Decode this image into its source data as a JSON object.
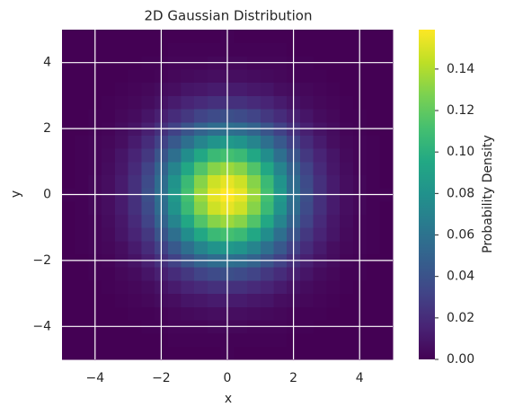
{
  "chart_data": {
    "type": "heatmap",
    "title": "2D Gaussian Distribution",
    "x_label": "x",
    "y_label": "y",
    "xlim": [
      -5,
      5
    ],
    "ylim": [
      -5,
      5
    ],
    "xticks": [
      {
        "value": -4,
        "label": "−4"
      },
      {
        "value": -2,
        "label": "−2"
      },
      0,
      2,
      4
    ],
    "yticks": [
      {
        "value": -4,
        "label": "−4"
      },
      {
        "value": -2,
        "label": "−2"
      },
      0,
      2,
      4
    ],
    "grid": true,
    "colormap": "viridis",
    "x": [
      -4.8,
      -4.4,
      -4.0,
      -3.6,
      -3.2,
      -2.8,
      -2.4,
      -2.0,
      -1.6,
      -1.2,
      -0.8,
      -0.4,
      0,
      0.4,
      0.8,
      1.2,
      1.6,
      2.0,
      2.4,
      2.8,
      3.2,
      3.6,
      4.0,
      4.4,
      4.8
    ],
    "y": [
      -4.8,
      -4.4,
      -4.0,
      -3.6,
      -3.2,
      -2.8,
      -2.4,
      -2.0,
      -1.6,
      -1.2,
      -0.8,
      -0.4,
      0,
      0.4,
      0.8,
      1.2,
      1.6,
      2.0,
      2.4,
      2.8,
      3.2,
      3.6,
      4.0,
      4.4,
      4.8
    ],
    "z": [
      [
        0,
        0,
        0,
        0,
        0,
        0,
        0,
        0,
        0,
        0,
        0,
        0,
        0.001,
        0,
        0,
        0,
        0,
        0,
        0,
        0,
        0,
        0,
        0,
        0,
        0
      ],
      [
        0,
        0,
        0,
        0,
        0,
        0,
        0,
        0,
        0.001,
        0.001,
        0.001,
        0.001,
        0.001,
        0.001,
        0.001,
        0.001,
        0.001,
        0,
        0,
        0,
        0,
        0,
        0,
        0,
        0
      ],
      [
        0,
        0,
        0,
        0,
        0,
        0,
        0.001,
        0.001,
        0.002,
        0.002,
        0.002,
        0.003,
        0.003,
        0.003,
        0.002,
        0.002,
        0.002,
        0.001,
        0.001,
        0,
        0,
        0,
        0,
        0,
        0
      ],
      [
        0,
        0,
        0,
        0,
        0,
        0.001,
        0.001,
        0.002,
        0.003,
        0.004,
        0.005,
        0.006,
        0.006,
        0.006,
        0.005,
        0.004,
        0.003,
        0.002,
        0.001,
        0.001,
        0,
        0,
        0,
        0,
        0
      ],
      [
        0,
        0,
        0,
        0,
        0.001,
        0.002,
        0.003,
        0.005,
        0.006,
        0.009,
        0.01,
        0.012,
        0.012,
        0.012,
        0.01,
        0.009,
        0.006,
        0.005,
        0.003,
        0.002,
        0.001,
        0,
        0,
        0,
        0
      ],
      [
        0,
        0,
        0,
        0.001,
        0.002,
        0.003,
        0.005,
        0.008,
        0.012,
        0.016,
        0.019,
        0.022,
        0.022,
        0.022,
        0.019,
        0.016,
        0.012,
        0.008,
        0.005,
        0.003,
        0.002,
        0.001,
        0,
        0,
        0
      ],
      [
        0,
        0,
        0.001,
        0.001,
        0.003,
        0.005,
        0.009,
        0.014,
        0.02,
        0.026,
        0.032,
        0.036,
        0.038,
        0.036,
        0.032,
        0.026,
        0.02,
        0.014,
        0.009,
        0.005,
        0.003,
        0.001,
        0.001,
        0,
        0
      ],
      [
        0,
        0,
        0.001,
        0.002,
        0.005,
        0.008,
        0.014,
        0.022,
        0.031,
        0.041,
        0.05,
        0.056,
        0.058,
        0.056,
        0.05,
        0.041,
        0.031,
        0.022,
        0.014,
        0.008,
        0.005,
        0.002,
        0.001,
        0,
        0
      ],
      [
        0,
        0.001,
        0.002,
        0.003,
        0.006,
        0.012,
        0.02,
        0.031,
        0.044,
        0.058,
        0.071,
        0.081,
        0.084,
        0.081,
        0.071,
        0.058,
        0.044,
        0.031,
        0.02,
        0.012,
        0.006,
        0.003,
        0.002,
        0.001,
        0
      ],
      [
        0,
        0.001,
        0.002,
        0.004,
        0.009,
        0.016,
        0.026,
        0.041,
        0.058,
        0.077,
        0.095,
        0.107,
        0.111,
        0.107,
        0.095,
        0.077,
        0.058,
        0.041,
        0.026,
        0.016,
        0.009,
        0.004,
        0.002,
        0.001,
        0
      ],
      [
        0,
        0.001,
        0.002,
        0.005,
        0.01,
        0.019,
        0.032,
        0.05,
        0.071,
        0.095,
        0.115,
        0.13,
        0.135,
        0.13,
        0.115,
        0.095,
        0.071,
        0.05,
        0.032,
        0.019,
        0.01,
        0.005,
        0.002,
        0.001,
        0
      ],
      [
        0,
        0.001,
        0.003,
        0.006,
        0.012,
        0.022,
        0.036,
        0.056,
        0.081,
        0.107,
        0.13,
        0.147,
        0.153,
        0.147,
        0.13,
        0.107,
        0.081,
        0.056,
        0.036,
        0.022,
        0.012,
        0.006,
        0.003,
        0.001,
        0
      ],
      [
        0.001,
        0.001,
        0.003,
        0.006,
        0.012,
        0.022,
        0.038,
        0.058,
        0.084,
        0.111,
        0.135,
        0.153,
        0.159,
        0.153,
        0.135,
        0.111,
        0.084,
        0.058,
        0.038,
        0.022,
        0.012,
        0.006,
        0.003,
        0.001,
        0.001
      ],
      [
        0,
        0.001,
        0.003,
        0.006,
        0.012,
        0.022,
        0.036,
        0.056,
        0.081,
        0.107,
        0.13,
        0.147,
        0.153,
        0.147,
        0.13,
        0.107,
        0.081,
        0.056,
        0.036,
        0.022,
        0.012,
        0.006,
        0.003,
        0.001,
        0
      ],
      [
        0,
        0.001,
        0.002,
        0.005,
        0.01,
        0.019,
        0.032,
        0.05,
        0.071,
        0.095,
        0.115,
        0.13,
        0.135,
        0.13,
        0.115,
        0.095,
        0.071,
        0.05,
        0.032,
        0.019,
        0.01,
        0.005,
        0.002,
        0.001,
        0
      ],
      [
        0,
        0.001,
        0.002,
        0.004,
        0.009,
        0.016,
        0.026,
        0.041,
        0.058,
        0.077,
        0.095,
        0.107,
        0.111,
        0.107,
        0.095,
        0.077,
        0.058,
        0.041,
        0.026,
        0.016,
        0.009,
        0.004,
        0.002,
        0.001,
        0
      ],
      [
        0,
        0.001,
        0.002,
        0.003,
        0.006,
        0.012,
        0.02,
        0.031,
        0.044,
        0.058,
        0.071,
        0.081,
        0.084,
        0.081,
        0.071,
        0.058,
        0.044,
        0.031,
        0.02,
        0.012,
        0.006,
        0.003,
        0.002,
        0.001,
        0
      ],
      [
        0,
        0,
        0.001,
        0.002,
        0.005,
        0.008,
        0.014,
        0.022,
        0.031,
        0.041,
        0.05,
        0.056,
        0.058,
        0.056,
        0.05,
        0.041,
        0.031,
        0.022,
        0.014,
        0.008,
        0.005,
        0.002,
        0.001,
        0,
        0
      ],
      [
        0,
        0,
        0.001,
        0.001,
        0.003,
        0.005,
        0.009,
        0.014,
        0.02,
        0.026,
        0.032,
        0.036,
        0.038,
        0.036,
        0.032,
        0.026,
        0.02,
        0.014,
        0.009,
        0.005,
        0.003,
        0.001,
        0.001,
        0,
        0
      ],
      [
        0,
        0,
        0,
        0.001,
        0.002,
        0.003,
        0.005,
        0.008,
        0.012,
        0.016,
        0.019,
        0.022,
        0.022,
        0.022,
        0.019,
        0.016,
        0.012,
        0.008,
        0.005,
        0.003,
        0.002,
        0.001,
        0,
        0,
        0
      ],
      [
        0,
        0,
        0,
        0,
        0.001,
        0.002,
        0.003,
        0.005,
        0.006,
        0.009,
        0.01,
        0.012,
        0.012,
        0.012,
        0.01,
        0.009,
        0.006,
        0.005,
        0.003,
        0.002,
        0.001,
        0,
        0,
        0,
        0
      ],
      [
        0,
        0,
        0,
        0,
        0,
        0.001,
        0.001,
        0.002,
        0.003,
        0.004,
        0.005,
        0.006,
        0.006,
        0.006,
        0.005,
        0.004,
        0.003,
        0.002,
        0.001,
        0.001,
        0,
        0,
        0,
        0,
        0
      ],
      [
        0,
        0,
        0,
        0,
        0,
        0,
        0.001,
        0.001,
        0.002,
        0.002,
        0.002,
        0.003,
        0.003,
        0.003,
        0.002,
        0.002,
        0.002,
        0.001,
        0.001,
        0,
        0,
        0,
        0,
        0,
        0
      ],
      [
        0,
        0,
        0,
        0,
        0,
        0,
        0,
        0,
        0.001,
        0.001,
        0.001,
        0.001,
        0.001,
        0.001,
        0.001,
        0.001,
        0.001,
        0,
        0,
        0,
        0,
        0,
        0,
        0,
        0
      ],
      [
        0,
        0,
        0,
        0,
        0,
        0,
        0,
        0,
        0,
        0,
        0,
        0,
        0.001,
        0,
        0,
        0,
        0,
        0,
        0,
        0,
        0,
        0,
        0,
        0,
        0
      ]
    ],
    "colorbar": {
      "label": "Probability Density",
      "lim": [
        0,
        0.159
      ],
      "ticks": [
        {
          "value": 0,
          "label": "0.00"
        },
        {
          "value": 0.02,
          "label": "0.02"
        },
        {
          "value": 0.04,
          "label": "0.04"
        },
        {
          "value": 0.06,
          "label": "0.06"
        },
        {
          "value": 0.08,
          "label": "0.08"
        },
        {
          "value": 0.1,
          "label": "0.10"
        },
        {
          "value": 0.12,
          "label": "0.12"
        },
        {
          "value": 0.14,
          "label": "0.14"
        }
      ]
    }
  }
}
